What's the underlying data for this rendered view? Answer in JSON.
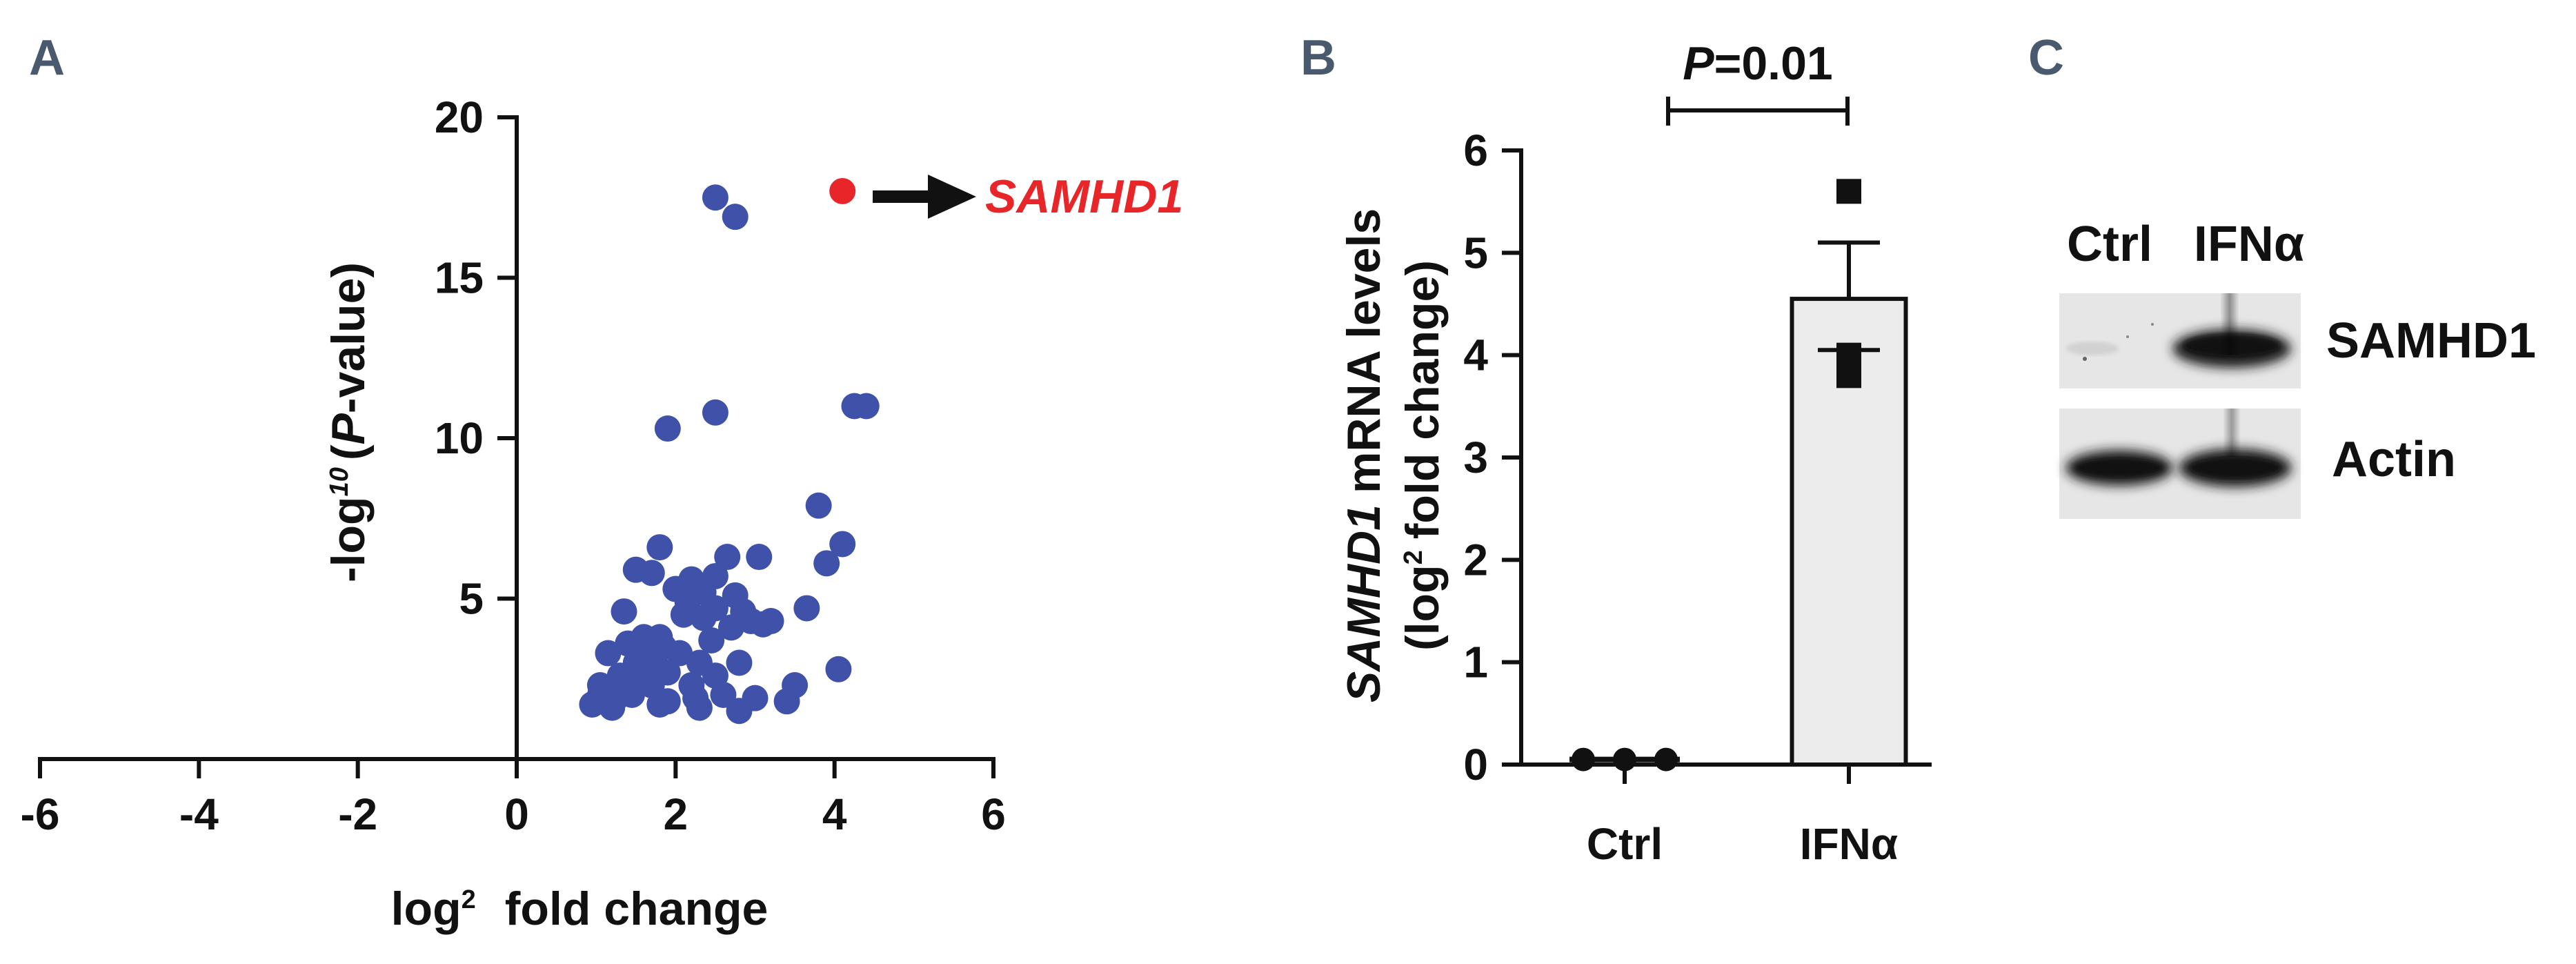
{
  "chart_data": [
    {
      "panel": "A",
      "type": "scatter",
      "xlabel_parts": {
        "main": "log",
        "sub": "2",
        "rest": "fold change"
      },
      "ylabel_parts": {
        "main": "-log",
        "sup": "10",
        "open": "(",
        "italic": "P",
        "rest": "-value)"
      },
      "xlim": [
        -6,
        6
      ],
      "ylim": [
        0,
        20
      ],
      "xticks": [
        -6,
        -4,
        -2,
        0,
        2,
        4,
        6
      ],
      "yticks": [
        5,
        10,
        15,
        20
      ],
      "point_color": "#3f51a8",
      "highlight_color": "#e8262a",
      "points": [
        {
          "x": 2.5,
          "y": 17.5
        },
        {
          "x": 2.75,
          "y": 16.9
        },
        {
          "x": 4.25,
          "y": 11.0
        },
        {
          "x": 4.4,
          "y": 11.0
        },
        {
          "x": 2.5,
          "y": 10.8
        },
        {
          "x": 1.9,
          "y": 10.3
        },
        {
          "x": 3.8,
          "y": 7.9
        },
        {
          "x": 4.1,
          "y": 6.7
        },
        {
          "x": 3.9,
          "y": 6.1
        },
        {
          "x": 1.8,
          "y": 6.6
        },
        {
          "x": 2.65,
          "y": 6.3
        },
        {
          "x": 3.05,
          "y": 6.3
        },
        {
          "x": 1.5,
          "y": 5.9
        },
        {
          "x": 1.7,
          "y": 5.8
        },
        {
          "x": 2.2,
          "y": 5.6
        },
        {
          "x": 2.5,
          "y": 5.7
        },
        {
          "x": 2.0,
          "y": 5.3
        },
        {
          "x": 2.35,
          "y": 5.2
        },
        {
          "x": 2.75,
          "y": 5.1
        },
        {
          "x": 2.15,
          "y": 4.9
        },
        {
          "x": 2.5,
          "y": 4.7
        },
        {
          "x": 3.65,
          "y": 4.7
        },
        {
          "x": 1.35,
          "y": 4.6
        },
        {
          "x": 2.1,
          "y": 4.5
        },
        {
          "x": 2.85,
          "y": 4.6
        },
        {
          "x": 2.35,
          "y": 4.4
        },
        {
          "x": 2.95,
          "y": 4.3
        },
        {
          "x": 3.1,
          "y": 4.2
        },
        {
          "x": 2.7,
          "y": 4.1
        },
        {
          "x": 3.2,
          "y": 4.3
        },
        {
          "x": 1.6,
          "y": 3.8
        },
        {
          "x": 1.8,
          "y": 3.8
        },
        {
          "x": 2.45,
          "y": 3.7
        },
        {
          "x": 1.4,
          "y": 3.6
        },
        {
          "x": 1.6,
          "y": 3.4
        },
        {
          "x": 1.85,
          "y": 3.5
        },
        {
          "x": 2.05,
          "y": 3.3
        },
        {
          "x": 1.15,
          "y": 3.3
        },
        {
          "x": 2.8,
          "y": 3.0
        },
        {
          "x": 1.5,
          "y": 3.0
        },
        {
          "x": 1.75,
          "y": 2.9
        },
        {
          "x": 2.3,
          "y": 3.0
        },
        {
          "x": 4.05,
          "y": 2.8
        },
        {
          "x": 1.3,
          "y": 2.6
        },
        {
          "x": 1.55,
          "y": 2.5
        },
        {
          "x": 1.9,
          "y": 2.7
        },
        {
          "x": 2.5,
          "y": 2.6
        },
        {
          "x": 1.05,
          "y": 2.3
        },
        {
          "x": 1.45,
          "y": 2.2
        },
        {
          "x": 2.2,
          "y": 2.3
        },
        {
          "x": 3.5,
          "y": 2.3
        },
        {
          "x": 1.7,
          "y": 2.3
        },
        {
          "x": 1.05,
          "y": 2.0
        },
        {
          "x": 2.6,
          "y": 2.0
        },
        {
          "x": 3.0,
          "y": 1.9
        },
        {
          "x": 1.25,
          "y": 1.9
        },
        {
          "x": 1.45,
          "y": 2.0
        },
        {
          "x": 1.9,
          "y": 1.8
        },
        {
          "x": 2.25,
          "y": 1.9
        },
        {
          "x": 0.95,
          "y": 1.7
        },
        {
          "x": 1.2,
          "y": 1.6
        },
        {
          "x": 1.8,
          "y": 1.7
        },
        {
          "x": 2.3,
          "y": 1.6
        },
        {
          "x": 3.4,
          "y": 1.8
        },
        {
          "x": 2.8,
          "y": 1.5
        }
      ],
      "highlight": {
        "x": 4.1,
        "y": 17.7,
        "label": "SAMHD1"
      }
    },
    {
      "panel": "B",
      "type": "bar",
      "categories": [
        "Ctrl",
        "IFNα"
      ],
      "values": [
        0.05,
        4.55
      ],
      "error": [
        0,
        0.55
      ],
      "bar_fill": "#ececec",
      "ylabel_line1_italic": "SAMHD1",
      "ylabel_line1_rest": "mRNA levels",
      "ylabel_line2_parts": {
        "open": "(log",
        "sub": "2",
        "rest": "fold change)"
      },
      "ylim": [
        0,
        6
      ],
      "yticks": [
        0,
        1,
        2,
        3,
        4,
        5,
        6
      ],
      "points": [
        [
          0.05,
          0.05,
          0.05
        ],
        [
          5.6,
          4.0,
          3.8
        ]
      ],
      "p_label": {
        "italic": "P",
        "rest": "=0.01"
      }
    },
    {
      "panel": "C",
      "type": "table",
      "lanes": [
        "Ctrl",
        "IFNα"
      ],
      "rows": [
        "SAMHD1",
        "Actin"
      ]
    }
  ]
}
